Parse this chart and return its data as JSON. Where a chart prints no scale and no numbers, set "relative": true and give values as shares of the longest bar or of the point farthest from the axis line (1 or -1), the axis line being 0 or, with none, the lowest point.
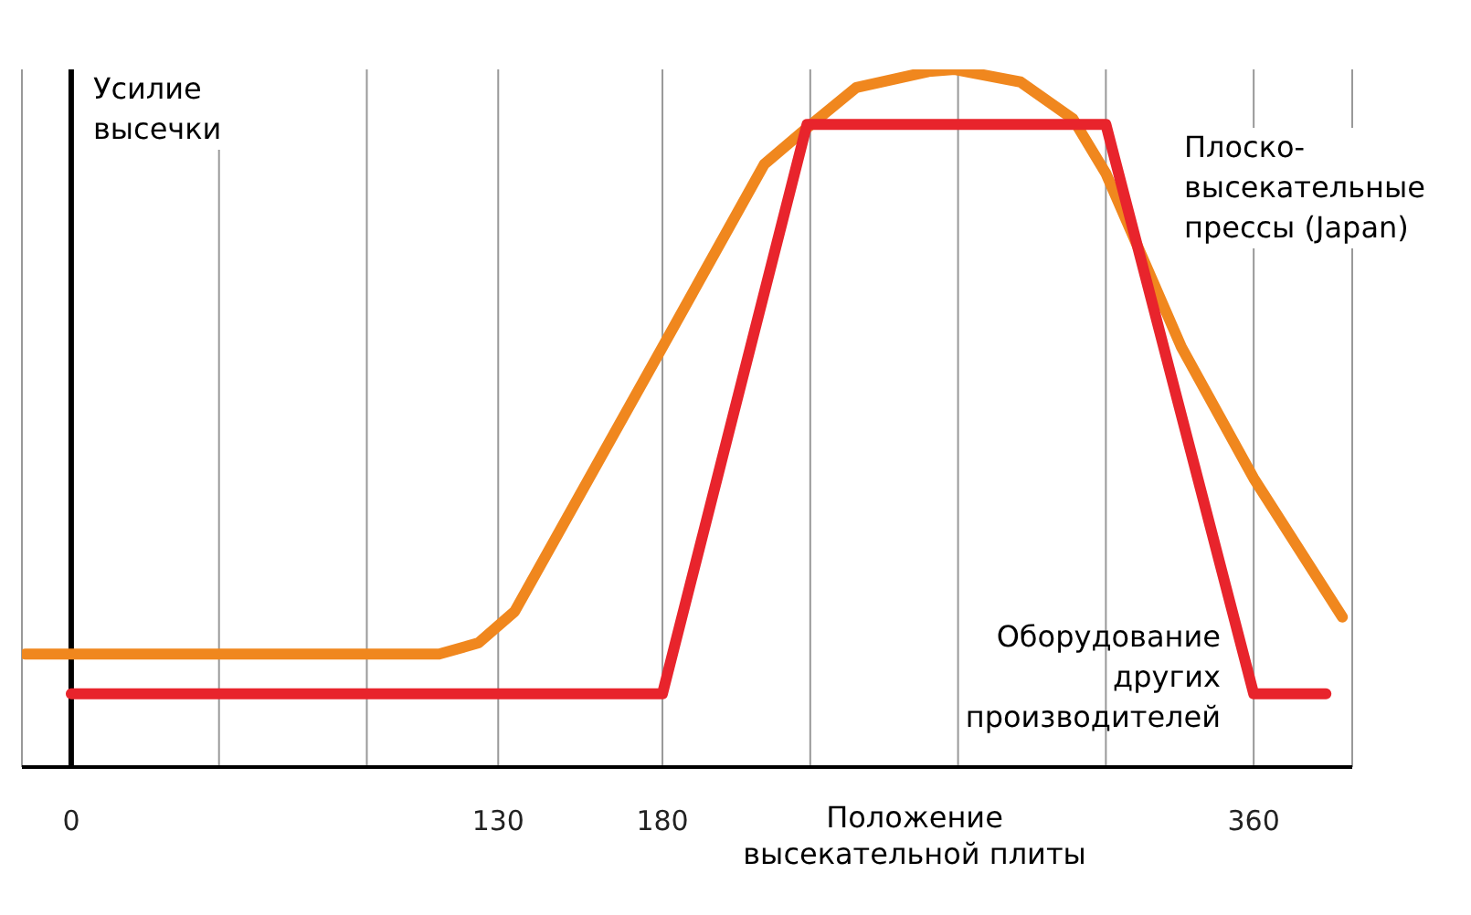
{
  "chart_data": {
    "type": "line",
    "relative": true,
    "ylabel": "Усилие высечки",
    "xlabel": "Положение высекательной плиты",
    "xlim": [
      -15,
      390
    ],
    "xticks": [
      0,
      {
        "value": 45,
        "label": null
      },
      {
        "value": 90,
        "label": null
      },
      130,
      180,
      {
        "value": 225,
        "label": null
      },
      {
        "value": 270,
        "label": null
      },
      {
        "value": 315,
        "label": null
      },
      360
    ],
    "grid": "x",
    "legend": false,
    "tick_labels": "x",
    "marker": "none",
    "line_style": "solid",
    "series": [
      {
        "name": "Плоско-высекательные прессы (Japan)",
        "color": "#f0871e",
        "x": [
          -14,
          112,
          124,
          135,
          180,
          211,
          224,
          239,
          261,
          269,
          289,
          305,
          315,
          338,
          360,
          387
        ],
        "values": [
          0.162,
          0.162,
          0.178,
          0.223,
          0.602,
          0.864,
          0.916,
          0.974,
          0.997,
          1,
          0.982,
          0.929,
          0.851,
          0.602,
          0.414,
          0.215
        ]
      },
      {
        "name": "Оборудование других производителей",
        "color": "#e8242c",
        "x": [
          0,
          180,
          224,
          315,
          360,
          382
        ],
        "values": [
          0.105,
          0.105,
          0.921,
          0.921,
          0.105,
          0.105
        ]
      }
    ]
  }
}
